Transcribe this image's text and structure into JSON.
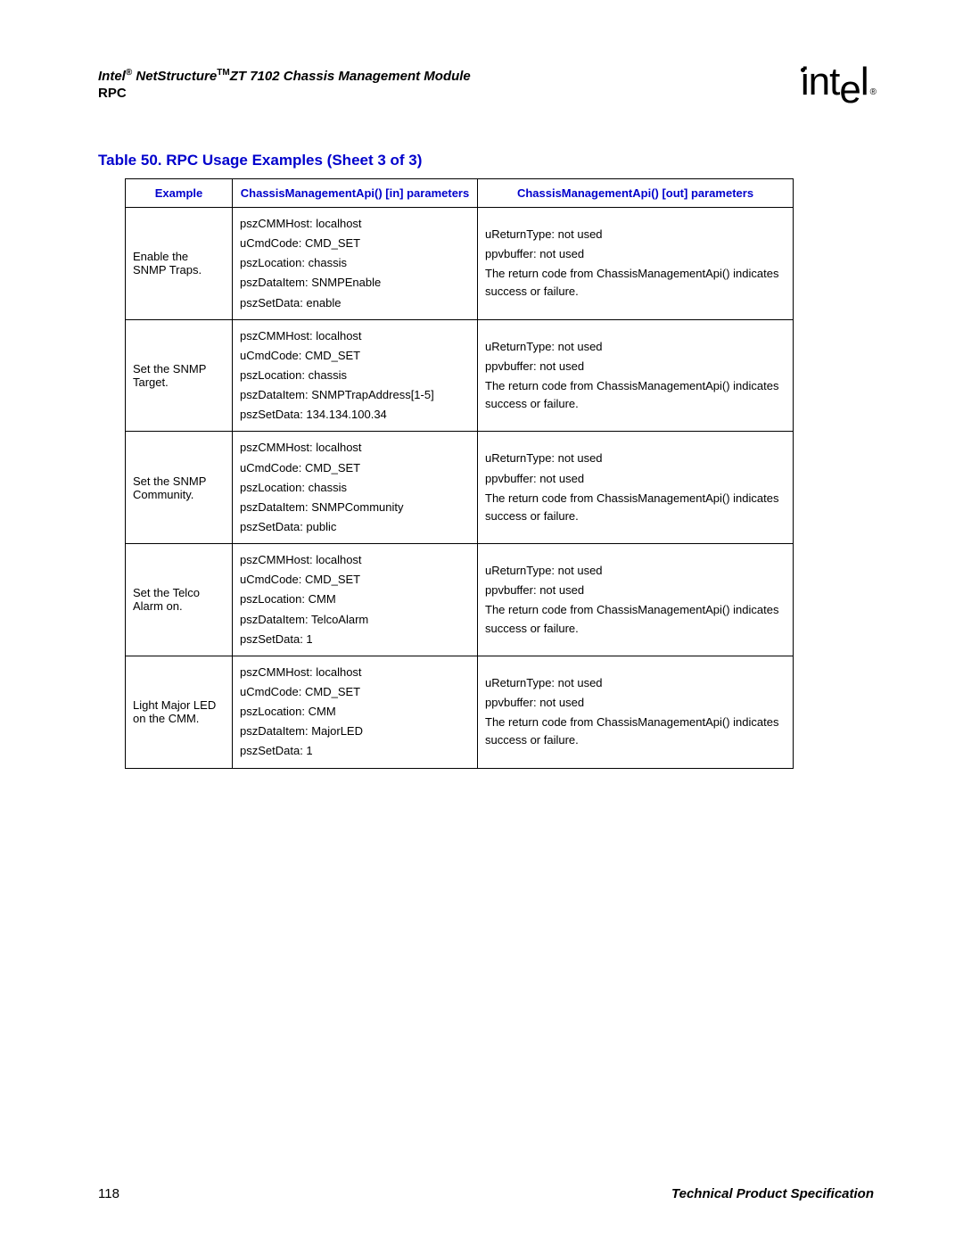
{
  "header": {
    "title_prefix": "Intel",
    "title_reg": "®",
    "title_mid": " NetStructure",
    "title_tm": "TM",
    "title_suffix": "ZT 7102 Chassis Management Module",
    "subtitle": "RPC"
  },
  "logo": {
    "text_i": "i",
    "text_nt": "nt",
    "text_e": "e",
    "text_l": "l",
    "reg": "®"
  },
  "table_title": "Table 50.  RPC Usage Examples (Sheet 3 of 3)",
  "columns": {
    "c0": "Example",
    "c1": "ChassisManagementApi() [in] parameters",
    "c2": "ChassisManagementApi() [out] parameters"
  },
  "rows": [
    {
      "example": "Enable the SNMP Traps.",
      "in": [
        "pszCMMHost: localhost",
        "uCmdCode: CMD_SET",
        "pszLocation: chassis",
        "pszDataItem: SNMPEnable",
        "pszSetData: enable"
      ],
      "out": [
        "uReturnType: not used",
        "ppvbuffer: not used",
        "The return code from ChassisManagementApi() indicates success or failure."
      ]
    },
    {
      "example": "Set the SNMP Target.",
      "in": [
        "pszCMMHost: localhost",
        "uCmdCode: CMD_SET",
        "pszLocation: chassis",
        "pszDataItem: SNMPTrapAddress[1-5]",
        "pszSetData: 134.134.100.34"
      ],
      "out": [
        "uReturnType: not used",
        "ppvbuffer: not used",
        "The return code from ChassisManagementApi() indicates success or failure."
      ]
    },
    {
      "example": "Set the SNMP Community.",
      "in": [
        "pszCMMHost: localhost",
        "uCmdCode: CMD_SET",
        "pszLocation: chassis",
        "pszDataItem: SNMPCommunity",
        "pszSetData: public"
      ],
      "out": [
        "uReturnType: not used",
        "ppvbuffer: not used",
        "The return code from ChassisManagementApi() indicates success or failure."
      ]
    },
    {
      "example": "Set the Telco Alarm on.",
      "in": [
        "pszCMMHost: localhost",
        "uCmdCode: CMD_SET",
        "pszLocation: CMM",
        "pszDataItem: TelcoAlarm",
        "pszSetData: 1"
      ],
      "out": [
        "uReturnType: not used",
        "ppvbuffer: not used",
        "The return code from ChassisManagementApi() indicates success or failure."
      ]
    },
    {
      "example": "Light Major LED on the CMM.",
      "in": [
        "pszCMMHost: localhost",
        "uCmdCode: CMD_SET",
        "pszLocation: CMM",
        "pszDataItem: MajorLED",
        "pszSetData: 1"
      ],
      "out": [
        "uReturnType: not used",
        "ppvbuffer: not used",
        "The return code from ChassisManagementApi() indicates success or failure."
      ]
    }
  ],
  "footer": {
    "page": "118",
    "doctype": "Technical Product Specification"
  }
}
